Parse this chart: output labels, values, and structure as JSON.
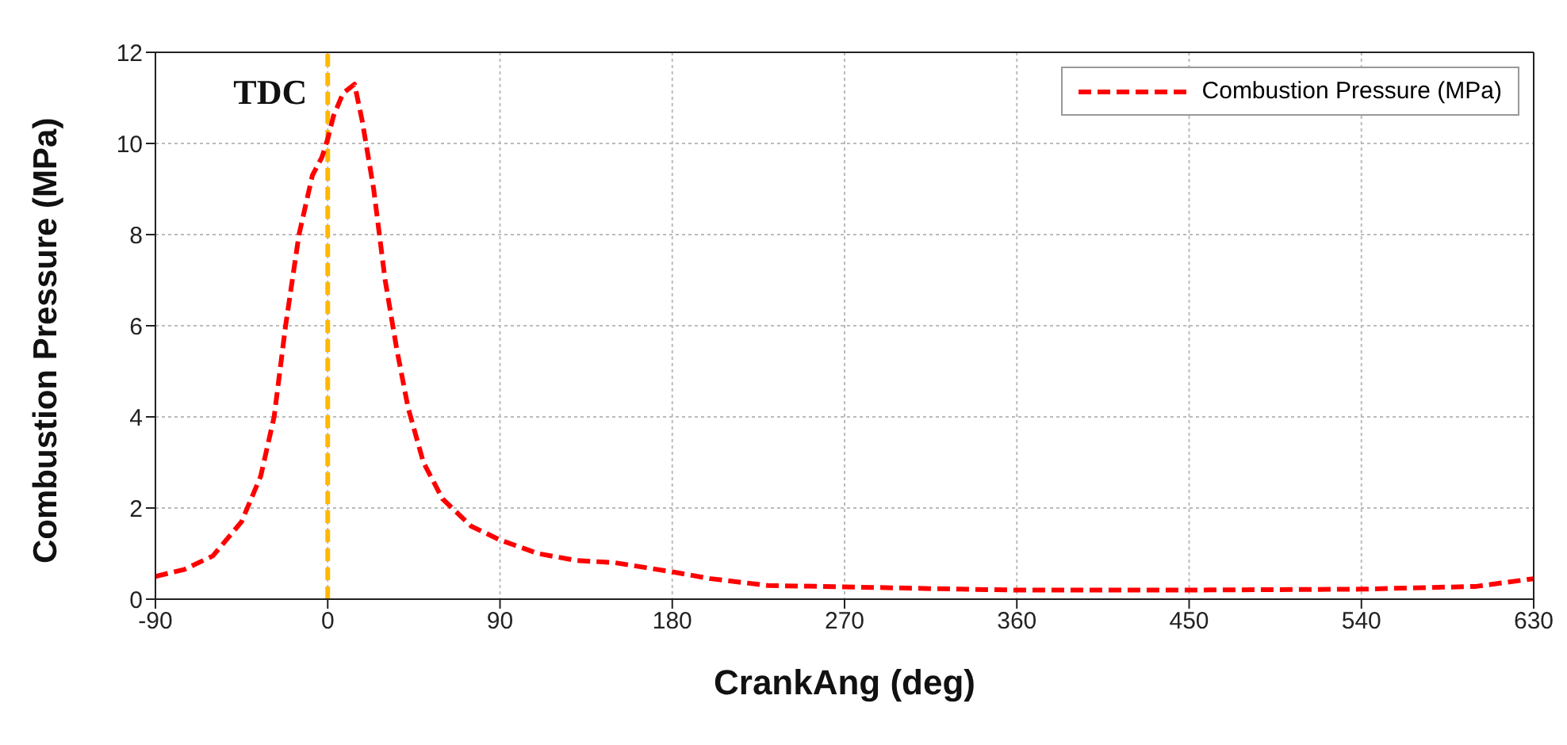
{
  "chart_data": {
    "type": "line",
    "xlabel": "CrankAng (deg)",
    "ylabel": "Combustion Pressure (MPa)",
    "x": [
      -90,
      -75,
      -60,
      -45,
      -35,
      -28,
      -22,
      -15,
      -8,
      -3,
      0,
      3,
      8,
      14,
      18,
      24,
      30,
      36,
      42,
      50,
      60,
      75,
      90,
      110,
      130,
      150,
      180,
      200,
      230,
      270,
      330,
      360,
      450,
      540,
      600,
      630
    ],
    "series": [
      {
        "name": "Combustion Pressure (MPa)",
        "color": "#ff0000",
        "values": [
          0.5,
          0.65,
          0.95,
          1.7,
          2.7,
          4,
          6,
          8,
          9.3,
          9.7,
          10.1,
          10.6,
          11.1,
          11.3,
          10.5,
          9,
          7,
          5.5,
          4.2,
          3,
          2.2,
          1.6,
          1.3,
          1,
          0.85,
          0.8,
          0.6,
          0.45,
          0.3,
          0.27,
          0.22,
          0.2,
          0.2,
          0.22,
          0.28,
          0.45
        ]
      }
    ],
    "xlim": [
      -90,
      630
    ],
    "xticks": [
      -90,
      0,
      90,
      180,
      270,
      360,
      450,
      540,
      630
    ],
    "ylim": [
      0,
      12
    ],
    "yticks": [
      0,
      2,
      4,
      6,
      8,
      10,
      12
    ],
    "ref_lines": [
      {
        "axis": "x",
        "value": 0,
        "label": "TDC",
        "color": "#ffb800",
        "line_style": "dashed"
      }
    ],
    "grid": true,
    "legend": "top right",
    "line_style": "dashed",
    "marker": "none"
  }
}
